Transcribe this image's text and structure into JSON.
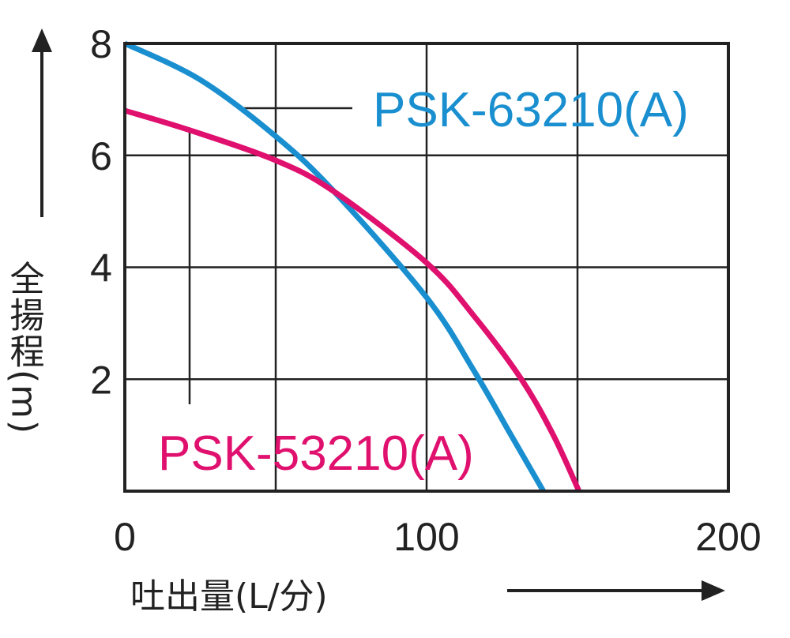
{
  "chart_data": {
    "type": "line",
    "title": "",
    "xlabel": "吐出量(L/分)",
    "ylabel": "全揚程(m)",
    "xlim": [
      0,
      200
    ],
    "ylim": [
      0,
      8
    ],
    "x_ticks": [
      "0",
      "100",
      "200"
    ],
    "y_ticks": [
      "2",
      "4",
      "6",
      "8"
    ],
    "grid": true,
    "series": [
      {
        "name": "PSK-63210(A)",
        "color": "#1a8fd0",
        "points": [
          [
            0,
            8.0
          ],
          [
            25,
            7.35
          ],
          [
            50,
            6.34
          ],
          [
            69.4,
            5.35
          ],
          [
            100,
            3.46
          ],
          [
            115.7,
            2.15
          ],
          [
            128,
            1.0
          ],
          [
            138.7,
            0
          ]
        ]
      },
      {
        "name": "PSK-53210(A)",
        "color": "#e0106e",
        "points": [
          [
            0,
            6.8
          ],
          [
            21.5,
            6.45
          ],
          [
            50,
            5.91
          ],
          [
            69.4,
            5.35
          ],
          [
            100,
            4.08
          ],
          [
            115.7,
            3.13
          ],
          [
            131.4,
            2.0
          ],
          [
            142,
            1.0
          ],
          [
            150.5,
            0
          ]
        ]
      }
    ]
  }
}
